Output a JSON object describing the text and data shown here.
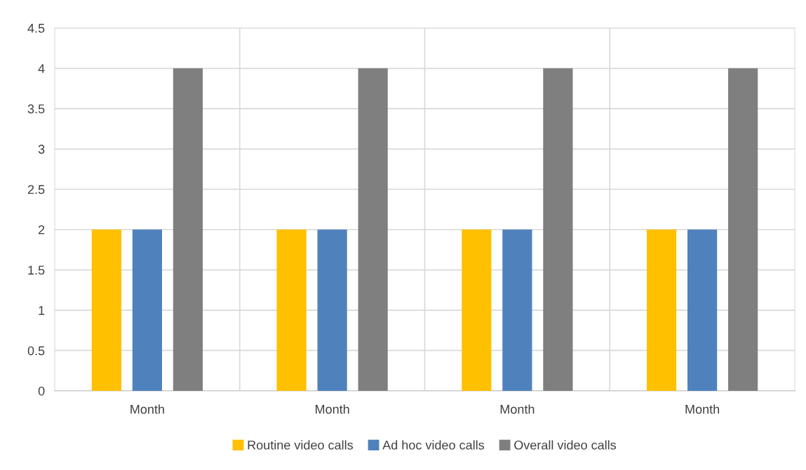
{
  "chart_data": {
    "type": "bar",
    "categories": [
      "Month",
      "Month",
      "Month",
      "Month"
    ],
    "series": [
      {
        "name": "Routine video calls",
        "color": "#ffc000",
        "values": [
          2,
          2,
          2,
          2
        ]
      },
      {
        "name": "Ad hoc video calls",
        "color": "#4f81bd",
        "values": [
          2,
          2,
          2,
          2
        ]
      },
      {
        "name": "Overall video calls",
        "color": "#7f7f7f",
        "values": [
          4,
          4,
          4,
          4
        ]
      }
    ],
    "ylim": [
      0,
      4.5
    ],
    "yticks": [
      0,
      0.5,
      1,
      1.5,
      2,
      2.5,
      3,
      3.5,
      4,
      4.5
    ],
    "grid": true,
    "legend": "bottom"
  }
}
